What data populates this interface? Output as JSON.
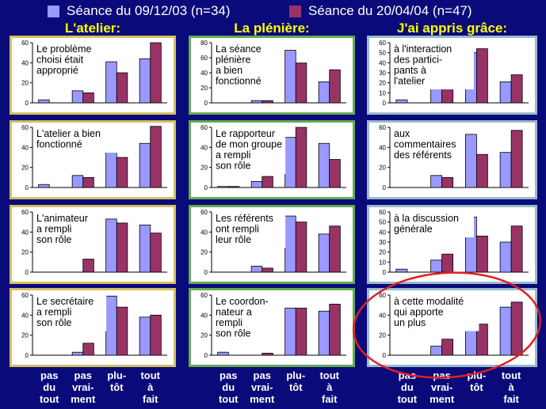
{
  "legend": {
    "series1_label": "Séance du 09/12/03 (n=34)",
    "series2_label": "Séance du 20/04/04 (n=47)"
  },
  "colors": {
    "background": "#0a0a7a",
    "series1": "#9999ff",
    "series2": "#993366",
    "col_title": "#ffff00",
    "frame_col1": "#d4c060",
    "frame_col2": "#66aa55",
    "frame_col3": "#99bbcc",
    "highlight": "#e02020"
  },
  "column_titles": [
    "L'atelier:",
    "La plénière:",
    "J'ai appris grâce:"
  ],
  "x_categories": [
    "pas du tout",
    "pas vrai-ment",
    "plu-tôt",
    "tout à fait"
  ],
  "x_labels": [
    [
      "pas",
      "du",
      "tout"
    ],
    [
      "pas",
      "vrai-",
      "ment"
    ],
    [
      "plu-",
      "tôt",
      ""
    ],
    [
      "tout",
      "à",
      "fait"
    ]
  ],
  "chart_data": [
    {
      "type": "bar",
      "lines": [
        "Le problème",
        "choisi était",
        "approprié"
      ],
      "categories": [
        "pas du tout",
        "pas vrai-ment",
        "plu-tôt",
        "tout à fait"
      ],
      "series": [
        {
          "name": "Séance du 09/12/03 (n=34)",
          "values": [
            3,
            12,
            41,
            44
          ]
        },
        {
          "name": "Séance du 20/04/04 (n=47)",
          "values": [
            0,
            10,
            30,
            60
          ]
        }
      ],
      "ylim": [
        0,
        60
      ],
      "yticks": [
        0,
        20,
        40,
        60
      ]
    },
    {
      "type": "bar",
      "lines": [
        "La séance",
        "plénière",
        "a bien",
        "fonctionné"
      ],
      "categories": [
        "pas du tout",
        "pas vrai-ment",
        "plu-tôt",
        "tout à fait"
      ],
      "series": [
        {
          "name": "Séance du 09/12/03 (n=34)",
          "values": [
            0,
            3,
            70,
            28
          ]
        },
        {
          "name": "Séance du 20/04/04 (n=47)",
          "values": [
            0,
            3,
            53,
            44
          ]
        }
      ],
      "ylim": [
        0,
        80
      ],
      "yticks": [
        0,
        20,
        40,
        60,
        80
      ]
    },
    {
      "type": "bar",
      "lines": [
        "à l'interaction",
        "des partici-",
        "pants à",
        "l'atelier"
      ],
      "categories": [
        "pas du tout",
        "pas vrai-ment",
        "plu-tôt",
        "tout à fait"
      ],
      "series": [
        {
          "name": "Séance du 09/12/03 (n=34)",
          "values": [
            3,
            26,
            50,
            21
          ]
        },
        {
          "name": "Séance du 20/04/04 (n=47)",
          "values": [
            0,
            19,
            54,
            28
          ]
        }
      ],
      "ylim": [
        0,
        60
      ],
      "yticks": [
        0,
        10,
        20,
        30,
        40,
        50,
        60
      ]
    },
    {
      "type": "bar",
      "lines": [
        "L'atelier a bien",
        "fonctionné"
      ],
      "categories": [
        "pas du tout",
        "pas vrai-ment",
        "plu-tôt",
        "tout à fait"
      ],
      "series": [
        {
          "name": "Séance du 09/12/03 (n=34)",
          "values": [
            3,
            12,
            41,
            44
          ]
        },
        {
          "name": "Séance du 20/04/04 (n=47)",
          "values": [
            0,
            10,
            30,
            61
          ]
        }
      ],
      "ylim": [
        0,
        60
      ],
      "yticks": [
        0,
        20,
        40,
        60
      ]
    },
    {
      "type": "bar",
      "lines": [
        "Le rapporteur",
        "de mon groupe",
        "a rempli",
        "son rôle"
      ],
      "categories": [
        "pas du tout",
        "pas vrai-ment",
        "plu-tôt",
        "tout à fait"
      ],
      "series": [
        {
          "name": "Séance du 09/12/03 (n=34)",
          "values": [
            1,
            6,
            50,
            44
          ]
        },
        {
          "name": "Séance du 20/04/04 (n=47)",
          "values": [
            1,
            11,
            60,
            28
          ]
        }
      ],
      "ylim": [
        0,
        60
      ],
      "yticks": [
        0,
        20,
        40,
        60
      ]
    },
    {
      "type": "bar",
      "lines": [
        "aux",
        "commentaires",
        "des référents"
      ],
      "categories": [
        "pas du tout",
        "pas vrai-ment",
        "plu-tôt",
        "tout à fait"
      ],
      "series": [
        {
          "name": "Séance du 09/12/03 (n=34)",
          "values": [
            0,
            12,
            53,
            35
          ]
        },
        {
          "name": "Séance du 20/04/04 (n=47)",
          "values": [
            0,
            10,
            33,
            57
          ]
        }
      ],
      "ylim": [
        0,
        60
      ],
      "yticks": [
        0,
        20,
        40,
        60
      ]
    },
    {
      "type": "bar",
      "lines": [
        "L'animateur",
        "a rempli",
        "son rôle"
      ],
      "categories": [
        "pas du tout",
        "pas vrai-ment",
        "plu-tôt",
        "tout à fait"
      ],
      "series": [
        {
          "name": "Séance du 09/12/03 (n=34)",
          "values": [
            0,
            0,
            53,
            47
          ]
        },
        {
          "name": "Séance du 20/04/04 (n=47)",
          "values": [
            0,
            13,
            49,
            39
          ]
        }
      ],
      "ylim": [
        0,
        60
      ],
      "yticks": [
        0,
        20,
        40,
        60
      ]
    },
    {
      "type": "bar",
      "lines": [
        "Les référents",
        "ont rempli",
        "leur rôle"
      ],
      "categories": [
        "pas du tout",
        "pas vrai-ment",
        "plu-tôt",
        "tout à fait"
      ],
      "series": [
        {
          "name": "Séance du 09/12/03 (n=34)",
          "values": [
            0,
            6,
            56,
            38
          ]
        },
        {
          "name": "Séance du 20/04/04 (n=47)",
          "values": [
            0,
            4,
            50,
            46
          ]
        }
      ],
      "ylim": [
        0,
        60
      ],
      "yticks": [
        0,
        20,
        40,
        60
      ]
    },
    {
      "type": "bar",
      "lines": [
        "à la discussion",
        "générale"
      ],
      "categories": [
        "pas du tout",
        "pas vrai-ment",
        "plu-tôt",
        "tout à fait"
      ],
      "series": [
        {
          "name": "Séance du 09/12/03 (n=34)",
          "values": [
            3,
            12,
            55,
            30
          ]
        },
        {
          "name": "Séance du 20/04/04 (n=47)",
          "values": [
            0,
            18,
            36,
            46
          ]
        }
      ],
      "ylim": [
        0,
        60
      ],
      "yticks": [
        0,
        10,
        20,
        30,
        40,
        50,
        60
      ]
    },
    {
      "type": "bar",
      "lines": [
        "Le secrétaire",
        "a rempli",
        "son rôle"
      ],
      "categories": [
        "pas du tout",
        "pas vrai-ment",
        "plu-tôt",
        "tout à fait"
      ],
      "series": [
        {
          "name": "Séance du 09/12/03 (n=34)",
          "values": [
            0,
            3,
            59,
            38
          ]
        },
        {
          "name": "Séance du 20/04/04 (n=47)",
          "values": [
            0,
            12,
            48,
            40
          ]
        }
      ],
      "ylim": [
        0,
        60
      ],
      "yticks": [
        0,
        20,
        40,
        60
      ]
    },
    {
      "type": "bar",
      "lines": [
        "Le coordon-",
        "nateur a",
        "rempli",
        "son rôle"
      ],
      "categories": [
        "pas du tout",
        "pas vrai-ment",
        "plu-tôt",
        "tout à fait"
      ],
      "series": [
        {
          "name": "Séance du 09/12/03 (n=34)",
          "values": [
            3,
            0,
            47,
            44
          ]
        },
        {
          "name": "Séance du 20/04/04 (n=47)",
          "values": [
            0,
            2,
            47,
            51
          ]
        }
      ],
      "ylim": [
        0,
        60
      ],
      "yticks": [
        0,
        20,
        40,
        60
      ]
    },
    {
      "type": "bar",
      "lines": [
        "à cette modalité",
        "qui apporte",
        "un plus"
      ],
      "categories": [
        "pas du tout",
        "pas vrai-ment",
        "plu-tôt",
        "tout à fait"
      ],
      "series": [
        {
          "name": "Séance du 09/12/03 (n=34)",
          "values": [
            0,
            9,
            42,
            48
          ]
        },
        {
          "name": "Séance du 20/04/04 (n=47)",
          "values": [
            0,
            16,
            31,
            53
          ]
        }
      ],
      "ylim": [
        0,
        60
      ],
      "yticks": [
        0,
        20,
        40,
        60
      ]
    }
  ]
}
